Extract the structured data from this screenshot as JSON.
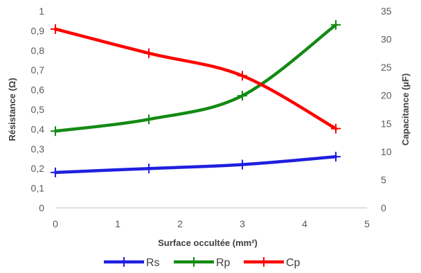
{
  "chart_data": {
    "type": "line",
    "xlabel": "Surface occultée (mm²)",
    "ylabel_left": "Résistance (Ω)",
    "ylabel_right": "Capacitance (µF)",
    "xlim": [
      0,
      5
    ],
    "ylim_left": [
      0,
      1
    ],
    "ylim_right": [
      0,
      35
    ],
    "x_ticks": [
      "0",
      "1",
      "2",
      "3",
      "4",
      "5"
    ],
    "y_left_ticks": [
      "0",
      "0,1",
      "0,2",
      "0,3",
      "0,4",
      "0,5",
      "0,6",
      "0,7",
      "0,8",
      "0,9",
      "1"
    ],
    "y_right_ticks": [
      "0",
      "5",
      "10",
      "15",
      "20",
      "25",
      "30",
      "35"
    ],
    "x": [
      0,
      1.5,
      3,
      4.5
    ],
    "grid": false,
    "legend_position": "bottom",
    "series": [
      {
        "name": "Rs",
        "axis": "left",
        "color": "#1f1fe0",
        "values": [
          0.18,
          0.2,
          0.22,
          0.26
        ]
      },
      {
        "name": "Rp",
        "axis": "left",
        "color": "#138a13",
        "values": [
          0.39,
          0.45,
          0.57,
          0.93
        ]
      },
      {
        "name": "Cp",
        "axis": "right",
        "color": "#ff0000",
        "values": [
          31.8,
          27.5,
          23.5,
          14.1
        ]
      }
    ]
  }
}
